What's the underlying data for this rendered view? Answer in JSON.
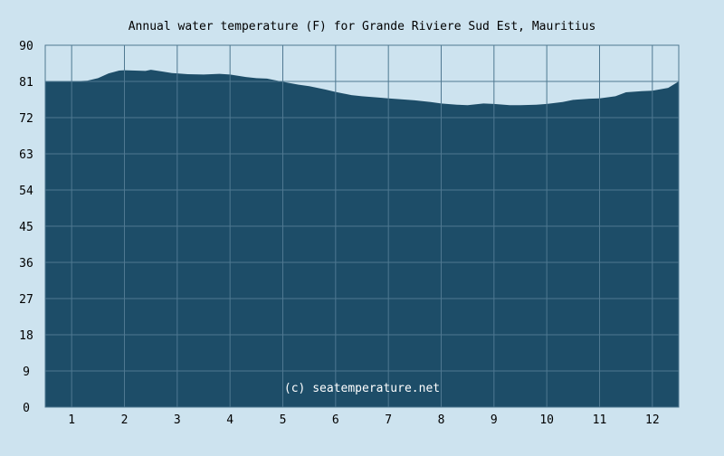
{
  "chart_data": {
    "type": "area",
    "title": "Annual water temperature (F) for Grande Riviere Sud Est, Mauritius",
    "xlabel": "",
    "ylabel": "",
    "x_ticks": [
      "1",
      "2",
      "3",
      "4",
      "5",
      "6",
      "7",
      "8",
      "9",
      "10",
      "11",
      "12"
    ],
    "y_ticks": [
      0,
      9,
      18,
      27,
      36,
      45,
      54,
      63,
      72,
      81,
      90
    ],
    "ylim": [
      0,
      90
    ],
    "xlim": [
      0.5,
      12.5
    ],
    "grid": true,
    "watermark": "(c) seatemperature.net",
    "series": [
      {
        "x": [
          0.5,
          1.0,
          1.3,
          1.5,
          1.7,
          1.9,
          2.0,
          2.2,
          2.4,
          2.5,
          2.7,
          2.9,
          3.0,
          3.2,
          3.5,
          3.8,
          4.0,
          4.3,
          4.5,
          4.7,
          5.0,
          5.3,
          5.5,
          5.8,
          6.0,
          6.3,
          6.5,
          6.8,
          7.0,
          7.3,
          7.5,
          7.8,
          8.0,
          8.3,
          8.5,
          8.8,
          9.0,
          9.3,
          9.5,
          9.8,
          10.0,
          10.3,
          10.5,
          10.8,
          11.0,
          11.3,
          11.5,
          11.8,
          12.0,
          12.3,
          12.5
        ],
        "values": [
          81.0,
          81.0,
          81.2,
          81.8,
          83.0,
          83.7,
          83.8,
          83.7,
          83.6,
          83.9,
          83.5,
          83.1,
          83.0,
          82.8,
          82.7,
          82.9,
          82.7,
          82.1,
          81.8,
          81.7,
          80.9,
          80.2,
          79.8,
          79.0,
          78.4,
          77.6,
          77.3,
          77.0,
          76.8,
          76.5,
          76.3,
          75.9,
          75.5,
          75.2,
          75.1,
          75.5,
          75.4,
          75.1,
          75.1,
          75.2,
          75.4,
          75.9,
          76.4,
          76.7,
          76.8,
          77.3,
          78.3,
          78.6,
          78.7,
          79.4,
          81.0
        ]
      }
    ],
    "colors": {
      "background": "#cde3ef",
      "plot_background": "#cde3ef",
      "area_fill": "#1d4d68",
      "grid": "#4f7891",
      "text": "#000000",
      "watermark": "#ffffff"
    }
  }
}
